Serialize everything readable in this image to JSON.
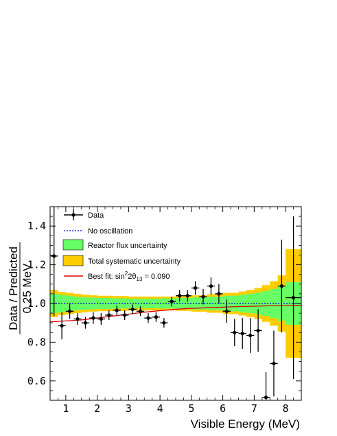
{
  "chart_data": {
    "type": "scatter",
    "xlabel": "Visible Energy (MeV)",
    "ylabel_line1": "Data / Predicted",
    "ylabel_line2": "0.25 MeV",
    "xlim": [
      0.5,
      8.5
    ],
    "ylim": [
      0.5,
      1.5
    ],
    "xticks": [
      1,
      2,
      3,
      4,
      5,
      6,
      7,
      8
    ],
    "yticks": [
      0.6,
      0.8,
      1.0,
      1.2,
      1.4
    ],
    "ytick_labels": [
      "0.6",
      "0.8",
      "1.0",
      "1.2",
      "1.4"
    ],
    "legend": {
      "placement": "top-left",
      "data": "Data",
      "no_osc": "No oscillation",
      "reactor": "Reactor flux uncertainty",
      "total": "Total systematic uncertainty",
      "bestfit_prefix": "Best fit: sin",
      "bestfit_sup": "2",
      "bestfit_mid": "2θ",
      "bestfit_sub": "13",
      "bestfit_suffix": " = 0.090"
    },
    "colors": {
      "reactor": "#66ff66",
      "total": "#ffcc00",
      "no_osc": "#0000cc",
      "best_fit": "#dd0000",
      "data": "#000000"
    },
    "no_oscillation": 1.0,
    "best_fit": {
      "x": [
        0.5,
        1.0,
        1.5,
        2.0,
        2.5,
        3.0,
        3.5,
        4.0,
        4.5,
        5.0,
        5.5,
        6.0,
        6.5,
        7.0,
        7.5,
        8.0,
        8.5
      ],
      "y": [
        0.905,
        0.91,
        0.915,
        0.925,
        0.935,
        0.945,
        0.955,
        0.963,
        0.97,
        0.975,
        0.978,
        0.981,
        0.984,
        0.986,
        0.988,
        0.989,
        0.99
      ]
    },
    "bands": [
      {
        "x0": 0.5,
        "x1": 0.75,
        "total": 0.07,
        "reactor": 0.05
      },
      {
        "x0": 0.75,
        "x1": 1.0,
        "total": 0.06,
        "reactor": 0.045
      },
      {
        "x0": 1.0,
        "x1": 1.25,
        "total": 0.055,
        "reactor": 0.04
      },
      {
        "x0": 1.25,
        "x1": 1.5,
        "total": 0.05,
        "reactor": 0.035
      },
      {
        "x0": 1.5,
        "x1": 1.75,
        "total": 0.045,
        "reactor": 0.032
      },
      {
        "x0": 1.75,
        "x1": 2.0,
        "total": 0.042,
        "reactor": 0.03
      },
      {
        "x0": 2.0,
        "x1": 2.5,
        "total": 0.04,
        "reactor": 0.028
      },
      {
        "x0": 2.5,
        "x1": 3.0,
        "total": 0.038,
        "reactor": 0.026
      },
      {
        "x0": 3.0,
        "x1": 3.5,
        "total": 0.036,
        "reactor": 0.025
      },
      {
        "x0": 3.5,
        "x1": 4.0,
        "total": 0.036,
        "reactor": 0.025
      },
      {
        "x0": 4.0,
        "x1": 4.5,
        "total": 0.036,
        "reactor": 0.026
      },
      {
        "x0": 4.5,
        "x1": 5.0,
        "total": 0.038,
        "reactor": 0.028
      },
      {
        "x0": 5.0,
        "x1": 5.5,
        "total": 0.042,
        "reactor": 0.031
      },
      {
        "x0": 5.5,
        "x1": 6.0,
        "total": 0.048,
        "reactor": 0.035
      },
      {
        "x0": 6.0,
        "x1": 6.5,
        "total": 0.055,
        "reactor": 0.04
      },
      {
        "x0": 6.5,
        "x1": 6.75,
        "total": 0.062,
        "reactor": 0.045
      },
      {
        "x0": 6.75,
        "x1": 7.0,
        "total": 0.07,
        "reactor": 0.05
      },
      {
        "x0": 7.0,
        "x1": 7.25,
        "total": 0.08,
        "reactor": 0.056
      },
      {
        "x0": 7.25,
        "x1": 7.5,
        "total": 0.095,
        "reactor": 0.064
      },
      {
        "x0": 7.5,
        "x1": 7.75,
        "total": 0.115,
        "reactor": 0.075
      },
      {
        "x0": 7.75,
        "x1": 8.0,
        "total": 0.145,
        "reactor": 0.09
      },
      {
        "x0": 8.0,
        "x1": 8.5,
        "total": 0.28,
        "reactor": 0.11
      }
    ],
    "points": [
      {
        "x": 0.625,
        "y": 1.245,
        "ey": 0.31
      },
      {
        "x": 0.875,
        "y": 0.885,
        "ey": 0.07
      },
      {
        "x": 1.125,
        "y": 0.96,
        "ey": 0.04
      },
      {
        "x": 1.375,
        "y": 0.92,
        "ey": 0.03
      },
      {
        "x": 1.625,
        "y": 0.9,
        "ey": 0.03
      },
      {
        "x": 1.875,
        "y": 0.925,
        "ey": 0.03
      },
      {
        "x": 2.125,
        "y": 0.92,
        "ey": 0.03
      },
      {
        "x": 2.375,
        "y": 0.94,
        "ey": 0.025
      },
      {
        "x": 2.625,
        "y": 0.965,
        "ey": 0.025
      },
      {
        "x": 2.875,
        "y": 0.94,
        "ey": 0.025
      },
      {
        "x": 3.125,
        "y": 0.97,
        "ey": 0.025
      },
      {
        "x": 3.375,
        "y": 0.96,
        "ey": 0.025
      },
      {
        "x": 3.625,
        "y": 0.925,
        "ey": 0.025
      },
      {
        "x": 3.875,
        "y": 0.93,
        "ey": 0.025
      },
      {
        "x": 4.125,
        "y": 0.9,
        "ey": 0.025
      },
      {
        "x": 4.375,
        "y": 1.01,
        "ey": 0.025
      },
      {
        "x": 4.625,
        "y": 1.04,
        "ey": 0.03
      },
      {
        "x": 4.875,
        "y": 1.04,
        "ey": 0.03
      },
      {
        "x": 5.125,
        "y": 1.08,
        "ey": 0.035
      },
      {
        "x": 5.375,
        "y": 1.035,
        "ey": 0.04
      },
      {
        "x": 5.625,
        "y": 1.09,
        "ey": 0.045
      },
      {
        "x": 5.875,
        "y": 1.05,
        "ey": 0.05
      },
      {
        "x": 6.125,
        "y": 0.96,
        "ey": 0.06
      },
      {
        "x": 6.375,
        "y": 0.85,
        "ey": 0.07
      },
      {
        "x": 6.625,
        "y": 0.845,
        "ey": 0.08
      },
      {
        "x": 6.875,
        "y": 0.835,
        "ey": 0.09
      },
      {
        "x": 7.125,
        "y": 0.86,
        "ey": 0.11
      },
      {
        "x": 7.375,
        "y": 0.515,
        "ey": 0.13
      },
      {
        "x": 7.625,
        "y": 0.69,
        "ey": 0.17
      },
      {
        "x": 7.875,
        "y": 1.09,
        "ey": 0.24
      },
      {
        "x": 8.25,
        "y": 1.03,
        "ey": 0.42
      }
    ]
  }
}
